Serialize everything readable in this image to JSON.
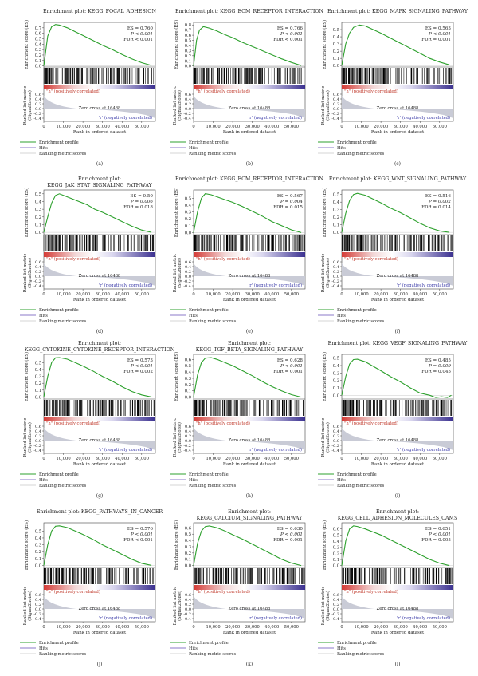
{
  "figure": {
    "legend_labels": [
      "Enrichment profile",
      "Hits",
      "Ranking metric scores"
    ],
    "colors": {
      "profile": "#2ca02c",
      "hits": "#000000",
      "ranking": "#c9cbd6",
      "grad_red": "#d43a35",
      "grad_blue": "#3a2f8f",
      "legend_hits": "#8b78c9"
    },
    "panel_texts": {
      "ylabel_es": "Enrichment score (ES)",
      "ylabel_rank_1": "Ranked list metric",
      "ylabel_rank_2": "(Signal2noise)",
      "pos_label": "\"h\" (positively correlated)",
      "neg_label": "'r' (negatively correlated)",
      "zero_cross": "Zero cross at 16488",
      "xlabel": "Rank in ordered dataset"
    },
    "x_ticks": [
      0,
      10000,
      20000,
      30000,
      40000,
      50000
    ],
    "x_tick_labels": [
      "0",
      "10,000",
      "20,000",
      "30,000",
      "40,000",
      "50,000"
    ],
    "rank_ticks": [
      "0.6",
      "0.4",
      "0.2",
      "0.0",
      "-0.2",
      "-0.4"
    ]
  },
  "chart_data": [
    {
      "type": "line",
      "letter": "(a)",
      "title_line1": "Enrichment plot: KEGG_FOCAL_ADHESION",
      "title_line2": "",
      "es": "ES = 0.760",
      "p": "P < 0.001",
      "fdr": "FDR < 0.001",
      "y_ticks": [
        "0.7",
        "0.6",
        "0.5",
        "0.4",
        "0.3",
        "0.2",
        "0.1",
        "0.0"
      ],
      "xlim": [
        0,
        57000
      ],
      "ylim": [
        -0.02,
        0.8
      ],
      "x": [
        0,
        2000,
        4000,
        6000,
        8000,
        12000,
        16000,
        20000,
        25000,
        30000,
        35000,
        40000,
        45000,
        50000,
        55000
      ],
      "y": [
        0.0,
        0.55,
        0.72,
        0.76,
        0.75,
        0.7,
        0.63,
        0.56,
        0.47,
        0.38,
        0.3,
        0.21,
        0.13,
        0.06,
        0.01
      ]
    },
    {
      "type": "line",
      "letter": "(b)",
      "title_line1": "Enrichment plot: KEGG_ECM_RECEPTOR_INTERACTION",
      "title_line2": "",
      "es": "ES = 0.766",
      "p": "P < 0.001",
      "fdr": "FDR < 0.001",
      "y_ticks": [
        "0.8",
        "0.7",
        "0.6",
        "0.5",
        "0.4",
        "0.3",
        "0.2",
        "0.1",
        "0.0"
      ],
      "xlim": [
        0,
        57000
      ],
      "ylim": [
        -0.02,
        0.85
      ],
      "x": [
        0,
        1500,
        3000,
        5000,
        8000,
        12000,
        16000,
        20000,
        25000,
        30000,
        35000,
        40000,
        45000,
        50000,
        55000
      ],
      "y": [
        0.0,
        0.5,
        0.7,
        0.766,
        0.74,
        0.68,
        0.61,
        0.55,
        0.46,
        0.38,
        0.3,
        0.22,
        0.14,
        0.07,
        0.01
      ]
    },
    {
      "type": "line",
      "letter": "(c)",
      "title_line1": "Enrichment plot: KEGG_MAPK_SIGNALING_PATHWAY",
      "title_line2": "",
      "es": "ES = 0.563",
      "p": "P < 0.001",
      "fdr": "FDR = 0.001",
      "y_ticks": [
        "0.5",
        "0.4",
        "0.3",
        "0.2",
        "0.1",
        "0.0"
      ],
      "xlim": [
        0,
        57000
      ],
      "ylim": [
        -0.02,
        0.6
      ],
      "x": [
        0,
        2000,
        4000,
        6000,
        9000,
        12000,
        16000,
        20000,
        25000,
        30000,
        35000,
        40000,
        45000,
        50000,
        55000
      ],
      "y": [
        0.0,
        0.3,
        0.45,
        0.53,
        0.563,
        0.55,
        0.5,
        0.45,
        0.38,
        0.31,
        0.24,
        0.17,
        0.1,
        0.05,
        0.01
      ]
    },
    {
      "type": "line",
      "letter": "(d)",
      "title_line1": "Enrichment plot:",
      "title_line2": "KEGG_JAK_STAT_SIGNALING_PATHWAY",
      "es": "ES = 0.50",
      "p": "P = 0.006",
      "fdr": "FDR = 0.018",
      "y_ticks": [
        "0.5",
        "0.4",
        "0.3",
        "0.2",
        "0.1",
        "0.0"
      ],
      "xlim": [
        0,
        57000
      ],
      "ylim": [
        -0.03,
        0.55
      ],
      "x": [
        0,
        2000,
        4000,
        6000,
        8000,
        10000,
        14000,
        18000,
        22000,
        26000,
        30000,
        35000,
        40000,
        45000,
        50000,
        55000
      ],
      "y": [
        0.0,
        0.2,
        0.38,
        0.48,
        0.5,
        0.48,
        0.44,
        0.4,
        0.36,
        0.3,
        0.26,
        0.2,
        0.14,
        0.08,
        0.03,
        0.0
      ]
    },
    {
      "type": "line",
      "letter": "(e)",
      "title_line1": "Enrichment plot: KEGG_ECM_RECEPTOR_INTERACTION",
      "title_line2": "",
      "es": "ES = 0.567",
      "p": "P = 0.004",
      "fdr": "FDR = 0.015",
      "y_ticks": [
        "0.5",
        "0.4",
        "0.3",
        "0.2",
        "0.1",
        "0.0"
      ],
      "xlim": [
        0,
        57000
      ],
      "ylim": [
        -0.03,
        0.62
      ],
      "x": [
        0,
        2000,
        4000,
        6000,
        9000,
        12000,
        16000,
        20000,
        25000,
        30000,
        35000,
        40000,
        45000,
        50000,
        55000
      ],
      "y": [
        0.0,
        0.3,
        0.5,
        0.567,
        0.55,
        0.52,
        0.48,
        0.44,
        0.38,
        0.31,
        0.24,
        0.16,
        0.1,
        0.04,
        0.0
      ]
    },
    {
      "type": "line",
      "letter": "(f)",
      "title_line1": "Enrichment plot: KEGG_WNT_SIGNALING_PATHWAY",
      "title_line2": "",
      "es": "ES = 0.516",
      "p": "P = 0.002",
      "fdr": "FDR = 0.014",
      "y_ticks": [
        "0.5",
        "0.4",
        "0.3",
        "0.2",
        "0.1",
        "0.0"
      ],
      "xlim": [
        0,
        57000
      ],
      "ylim": [
        -0.03,
        0.56
      ],
      "x": [
        0,
        2000,
        4000,
        6000,
        8000,
        12000,
        16000,
        20000,
        25000,
        30000,
        35000,
        40000,
        45000,
        50000,
        55000
      ],
      "y": [
        0.0,
        0.25,
        0.42,
        0.5,
        0.516,
        0.49,
        0.44,
        0.39,
        0.32,
        0.26,
        0.19,
        0.12,
        0.06,
        0.02,
        0.0
      ]
    },
    {
      "type": "line",
      "letter": "(g)",
      "title_line1": "Enrichment plot:",
      "title_line2": "KEGG_CYTOKINE_CYTOKINE_RECEPTOR_INTERACTION",
      "es": "ES = 0.573",
      "p": "P < 0.001",
      "fdr": "FDR = 0.002",
      "y_ticks": [
        "0.5",
        "0.4",
        "0.3",
        "0.2",
        "0.1",
        "0.0"
      ],
      "xlim": [
        0,
        57000
      ],
      "ylim": [
        -0.03,
        0.62
      ],
      "x": [
        0,
        2000,
        4000,
        6000,
        8000,
        12000,
        16000,
        20000,
        25000,
        30000,
        35000,
        40000,
        45000,
        50000,
        55000
      ],
      "y": [
        0.0,
        0.3,
        0.5,
        0.57,
        0.573,
        0.55,
        0.5,
        0.45,
        0.38,
        0.3,
        0.23,
        0.15,
        0.08,
        0.03,
        0.0
      ]
    },
    {
      "type": "line",
      "letter": "(h)",
      "title_line1": "Enrichment plot:",
      "title_line2": "KEGG_TGF_BETA_SIGNALING_PATHWAY",
      "es": "ES = 0.628",
      "p": "P < 0.001",
      "fdr": "FDR = 0.001",
      "y_ticks": [
        "0.6",
        "0.5",
        "0.4",
        "0.3",
        "0.2",
        "0.1",
        "0.0"
      ],
      "xlim": [
        0,
        57000
      ],
      "ylim": [
        -0.03,
        0.68
      ],
      "x": [
        0,
        2000,
        4000,
        6000,
        9000,
        12000,
        16000,
        20000,
        25000,
        30000,
        35000,
        40000,
        45000,
        50000,
        55000
      ],
      "y": [
        0.0,
        0.35,
        0.55,
        0.62,
        0.628,
        0.6,
        0.55,
        0.5,
        0.42,
        0.34,
        0.25,
        0.17,
        0.1,
        0.04,
        0.0
      ]
    },
    {
      "type": "line",
      "letter": "(i)",
      "title_line1": "Enrichment plot: KEGG_VEGF_SIGNALING_PATHWAY",
      "title_line2": "",
      "es": "ES = 0.485",
      "p": "P = 0.009",
      "fdr": "FDR = 0.045",
      "y_ticks": [
        "0.5",
        "0.4",
        "0.3",
        "0.2",
        "0.1",
        "0.0"
      ],
      "xlim": [
        0,
        57000
      ],
      "ylim": [
        -0.05,
        0.55
      ],
      "x": [
        0,
        2000,
        4000,
        6000,
        8000,
        12000,
        16000,
        20000,
        25000,
        30000,
        35000,
        40000,
        45000,
        48000,
        51000,
        54000,
        56000
      ],
      "y": [
        0.0,
        0.25,
        0.42,
        0.48,
        0.485,
        0.45,
        0.39,
        0.33,
        0.25,
        0.18,
        0.1,
        0.03,
        0.0,
        -0.03,
        -0.02,
        -0.03,
        0.0
      ]
    },
    {
      "type": "line",
      "letter": "(j)",
      "title_line1": "Enrichment plot: KEGG_PATHWAYS_IN_CANCER",
      "title_line2": "",
      "es": "ES = 0.576",
      "p": "P < 0.001",
      "fdr": "FDR < 0.001",
      "y_ticks": [
        "0.5",
        "0.4",
        "0.3",
        "0.2",
        "0.1",
        "0.0"
      ],
      "xlim": [
        0,
        57000
      ],
      "ylim": [
        -0.03,
        0.62
      ],
      "x": [
        0,
        2000,
        4000,
        6000,
        8000,
        12000,
        16000,
        20000,
        25000,
        30000,
        35000,
        40000,
        45000,
        50000,
        55000
      ],
      "y": [
        0.0,
        0.3,
        0.5,
        0.57,
        0.576,
        0.55,
        0.5,
        0.45,
        0.38,
        0.3,
        0.23,
        0.16,
        0.09,
        0.03,
        0.0
      ]
    },
    {
      "type": "line",
      "letter": "(k)",
      "title_line1": "Enrichment plot:",
      "title_line2": "KEGG_CALCIUM_SIGNALING_PATHWAY",
      "es": "ES = 0.630",
      "p": "P < 0.001",
      "fdr": "FDR = 0.001",
      "y_ticks": [
        "0.6",
        "0.5",
        "0.4",
        "0.3",
        "0.2",
        "0.1",
        "0.0"
      ],
      "xlim": [
        0,
        57000
      ],
      "ylim": [
        -0.03,
        0.68
      ],
      "x": [
        0,
        2000,
        4000,
        6000,
        8000,
        12000,
        16000,
        20000,
        25000,
        30000,
        35000,
        40000,
        45000,
        50000,
        55000
      ],
      "y": [
        0.0,
        0.35,
        0.55,
        0.62,
        0.63,
        0.6,
        0.55,
        0.49,
        0.42,
        0.34,
        0.26,
        0.18,
        0.1,
        0.04,
        0.0
      ]
    },
    {
      "type": "line",
      "letter": "(l)",
      "title_line1": "Enrichment plot:",
      "title_line2": "KEGG_CELL_ADHESION_MOLECULES_CAMS",
      "es": "ES = 0.651",
      "p": "P < 0.001",
      "fdr": "FDR = 0.005",
      "y_ticks": [
        "0.6",
        "0.5",
        "0.4",
        "0.3",
        "0.2",
        "0.1",
        "0.0"
      ],
      "xlim": [
        0,
        57000
      ],
      "ylim": [
        -0.03,
        0.7
      ],
      "x": [
        0,
        2000,
        4000,
        6000,
        8000,
        12000,
        16000,
        20000,
        25000,
        30000,
        35000,
        40000,
        45000,
        50000,
        55000
      ],
      "y": [
        0.0,
        0.4,
        0.6,
        0.651,
        0.64,
        0.6,
        0.55,
        0.5,
        0.42,
        0.34,
        0.26,
        0.18,
        0.1,
        0.04,
        0.0
      ]
    }
  ]
}
